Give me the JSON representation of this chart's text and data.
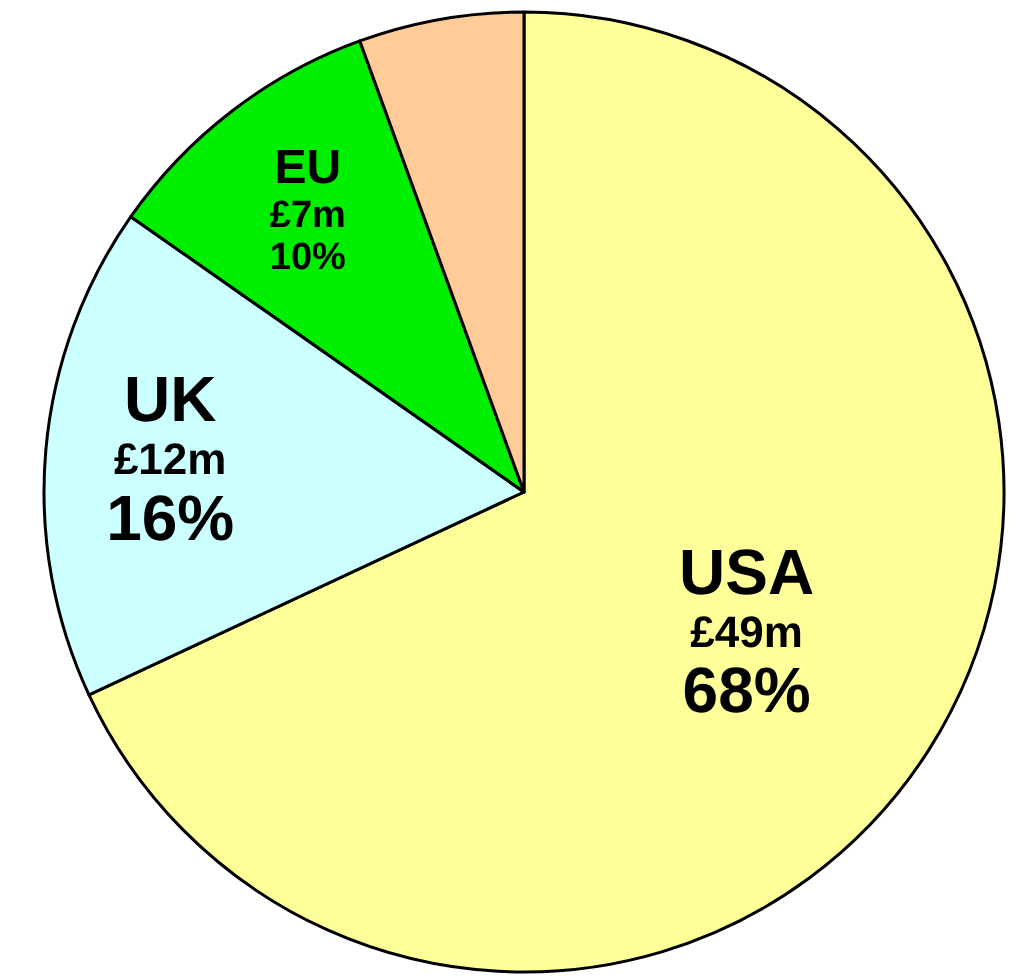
{
  "chart_data": {
    "type": "pie",
    "categories": [
      "USA",
      "UK",
      "EU",
      null
    ],
    "values": [
      49,
      12,
      7,
      4
    ],
    "value_labels": [
      "£49m",
      "£12m",
      "£7m",
      null
    ],
    "annotations": [
      "68%",
      "16%",
      "10%"
    ],
    "colors": [
      "#ffff99",
      "#ccffff",
      "#00ee00",
      "#ffcc99"
    ]
  }
}
